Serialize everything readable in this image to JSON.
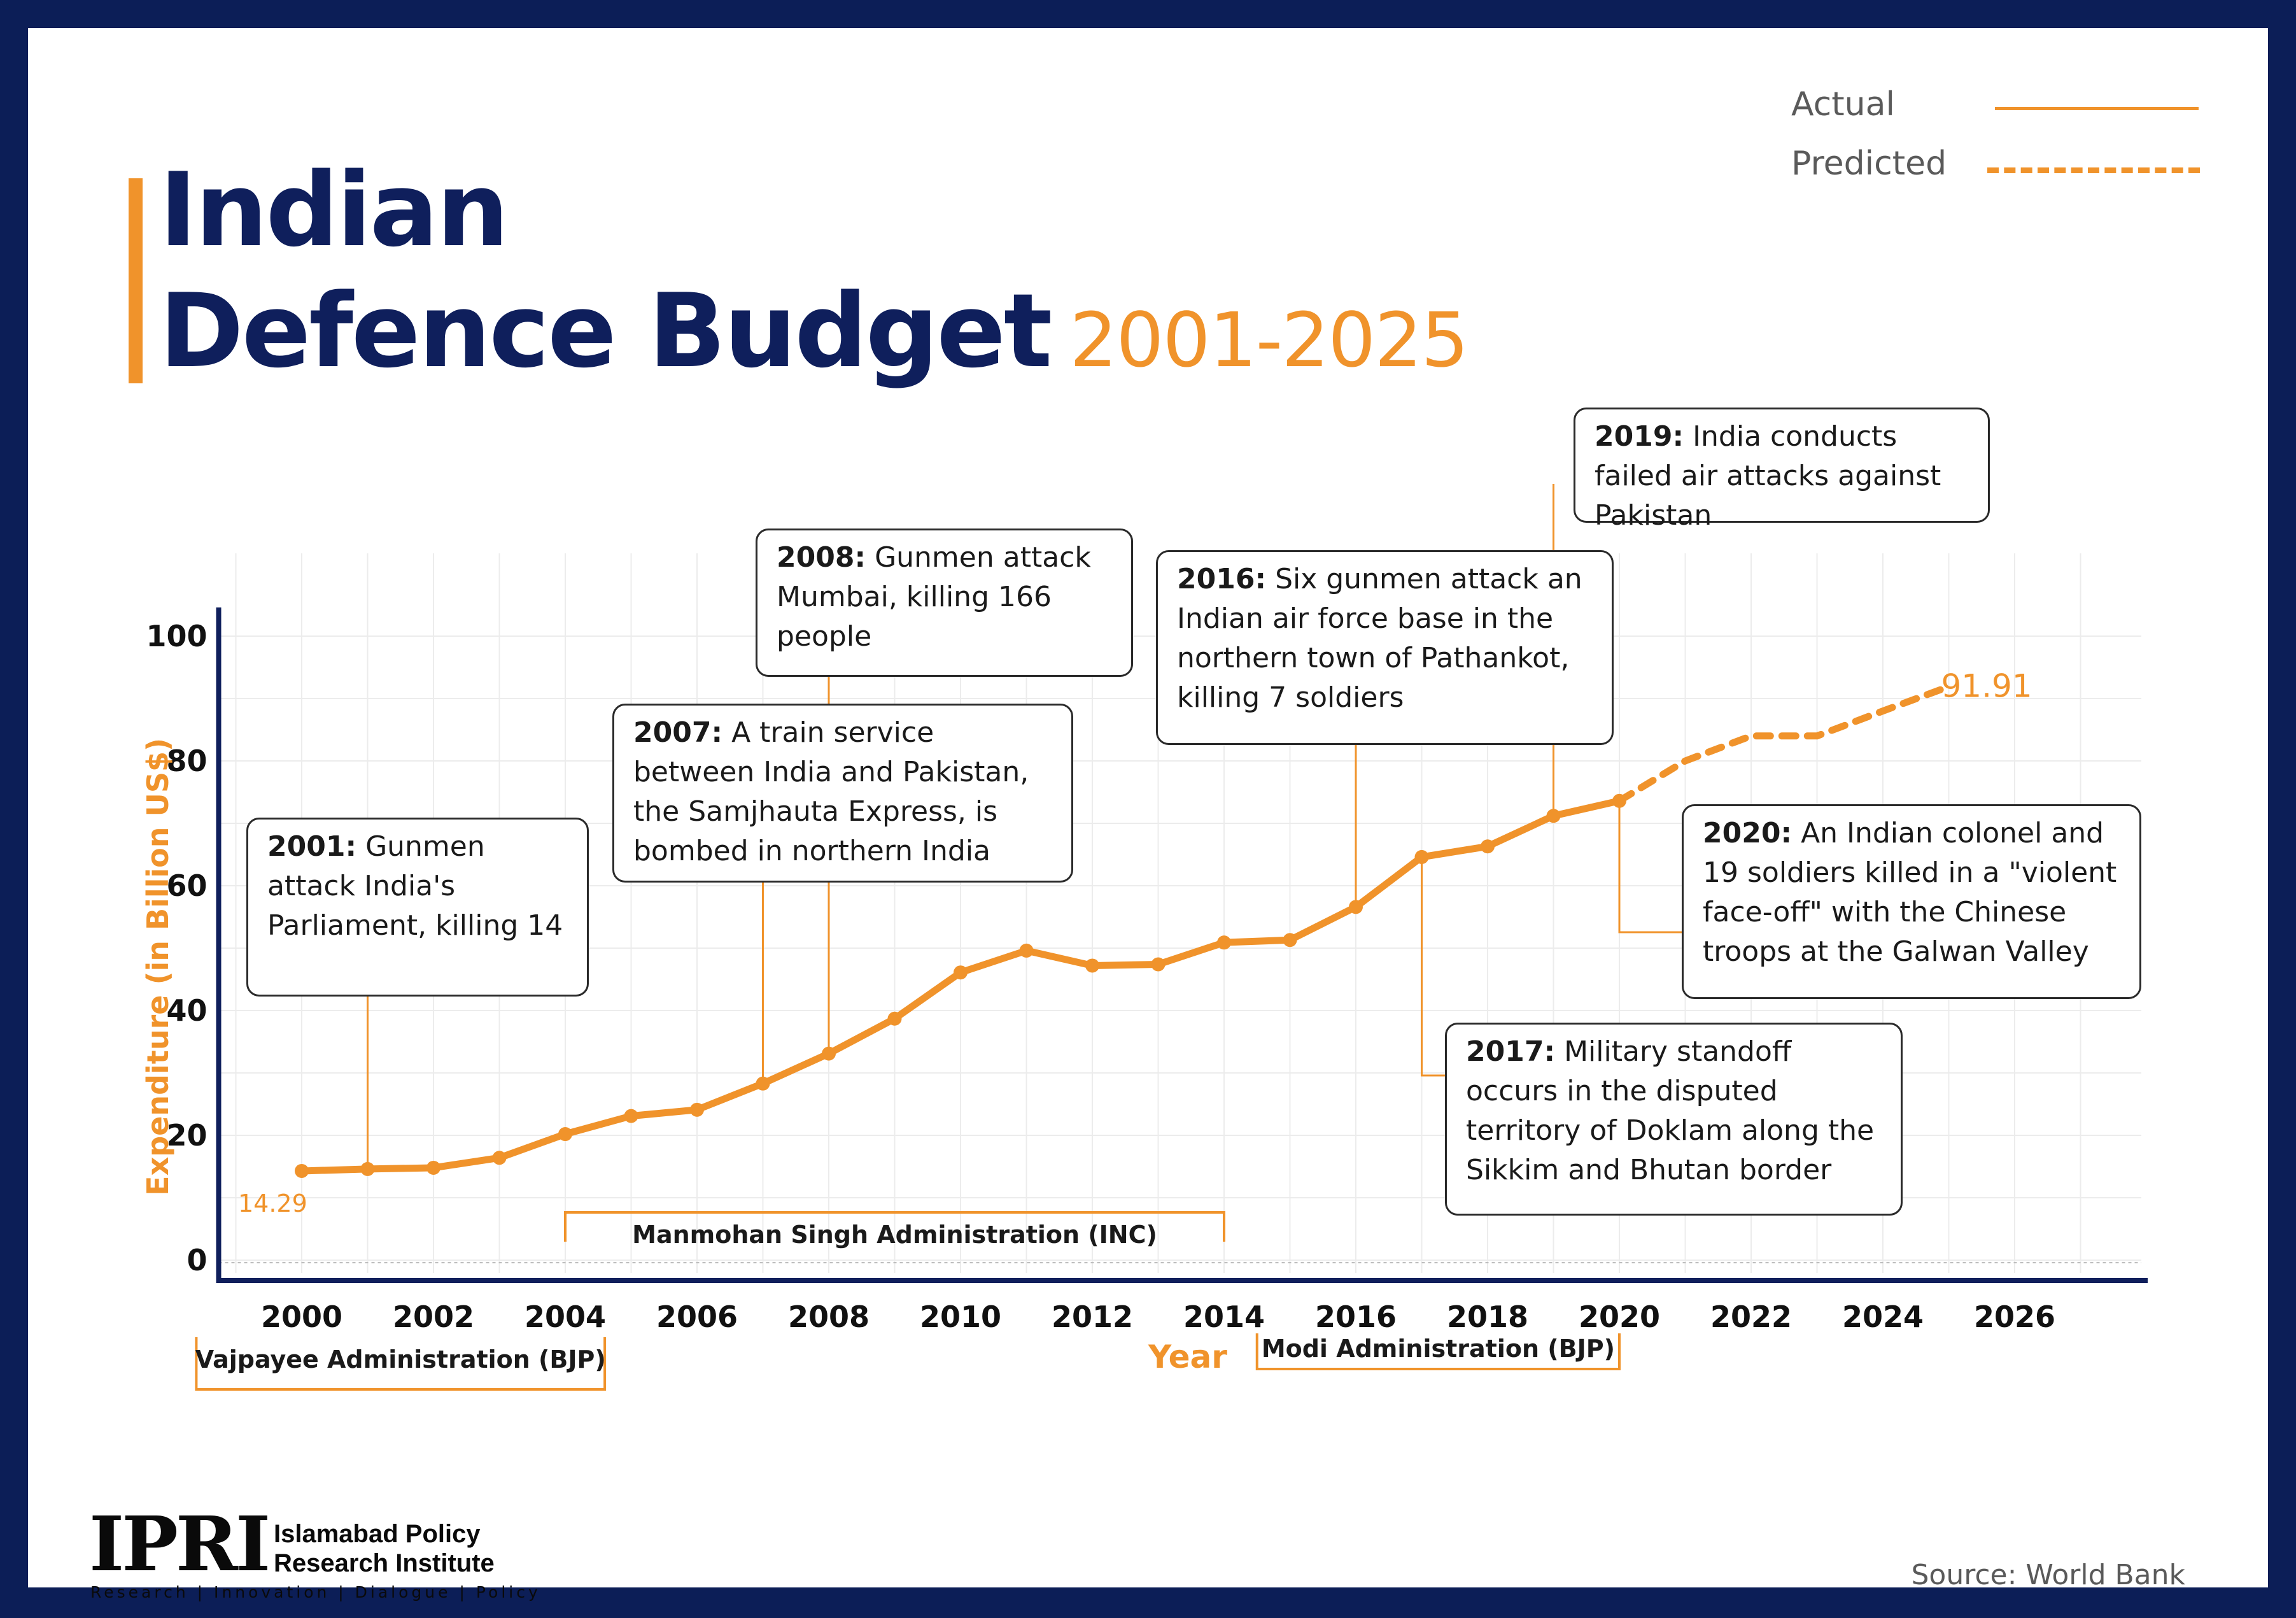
{
  "title": {
    "line1": "Indian",
    "line2": "Defence Budget",
    "years": "2001-2025"
  },
  "legend": {
    "actual": "Actual",
    "predicted": "Predicted"
  },
  "colors": {
    "accent": "#f0932b",
    "navy": "#0f1f5c",
    "frame": "#0c1e57",
    "grid": "#ececec"
  },
  "chart_data": {
    "type": "line",
    "xlabel": "Year",
    "ylabel": "Expenditure (in Billion US$)",
    "xlim": [
      1999,
      2028
    ],
    "ylim": [
      0,
      100
    ],
    "x_ticks": [
      "2000",
      "2002",
      "2004",
      "2006",
      "2008",
      "2010",
      "2012",
      "2014",
      "2016",
      "2018",
      "2020",
      "2022",
      "2024",
      "2026"
    ],
    "y_ticks": [
      "0",
      "20",
      "40",
      "60",
      "80",
      "100"
    ],
    "grid": true,
    "legend_position": "top-right",
    "series": [
      {
        "name": "Actual",
        "style": "solid",
        "x": [
          2000,
          2001,
          2002,
          2003,
          2004,
          2005,
          2006,
          2007,
          2008,
          2009,
          2010,
          2011,
          2012,
          2013,
          2014,
          2015,
          2016,
          2017,
          2018,
          2019,
          2020
        ],
        "y": [
          14.29,
          14.6,
          14.8,
          16.4,
          20.2,
          23.1,
          24.1,
          28.3,
          33.1,
          38.7,
          46.1,
          49.6,
          47.2,
          47.4,
          50.9,
          51.3,
          56.6,
          64.6,
          66.3,
          71.2,
          73.6
        ]
      },
      {
        "name": "Predicted",
        "style": "dashed",
        "x": [
          2020,
          2021,
          2022,
          2023,
          2024,
          2025
        ],
        "y": [
          73.6,
          80.0,
          84.0,
          84.0,
          88.0,
          91.91
        ]
      }
    ],
    "value_labels": [
      {
        "x": 2000,
        "y": 14.29,
        "text": "14.29"
      },
      {
        "x": 2025,
        "y": 91.91,
        "text": "91.91"
      }
    ],
    "administrations": [
      {
        "label": "Vajpayee Administration (BJP)",
        "start": 1998.4,
        "end": 2004.6,
        "position": "below"
      },
      {
        "label": "Manmohan Singh Administration (INC)",
        "start": 2004,
        "end": 2014,
        "position": "above"
      },
      {
        "label": "Modi Administration (BJP)",
        "start": 2014.5,
        "end": 2020,
        "position": "below"
      }
    ],
    "annotations": [
      {
        "year": "2001:",
        "x": 2001,
        "text": "Gunmen attack India's Parliament, killing 14"
      },
      {
        "year": "2007:",
        "x": 2007,
        "text": "A train service between India and Pakistan, the Samjhauta Express, is bombed in northern India"
      },
      {
        "year": "2008:",
        "x": 2008,
        "text": "Gunmen attack Mumbai, killing 166 people"
      },
      {
        "year": "2016:",
        "x": 2016,
        "text": "Six gunmen attack an Indian air force base in the northern town of Pathankot, killing 7 soldiers"
      },
      {
        "year": "2017:",
        "x": 2017,
        "text": "Military standoff occurs in the disputed territory of Doklam along the Sikkim and Bhutan border"
      },
      {
        "year": "2019:",
        "x": 2019,
        "text": "India conducts failed air attacks against Pakistan"
      },
      {
        "year": "2020:",
        "x": 2020,
        "text": "An Indian colonel and 19 soldiers killed in a \"violent face-off\" with the Chinese troops at the Galwan Valley"
      }
    ]
  },
  "source": "Source: World Bank",
  "logo": {
    "mark": "IPRI",
    "name_line1": "Islamabad Policy",
    "name_line2": "Research Institute",
    "tagline": "Research | Innovation | Dialogue | Policy"
  }
}
